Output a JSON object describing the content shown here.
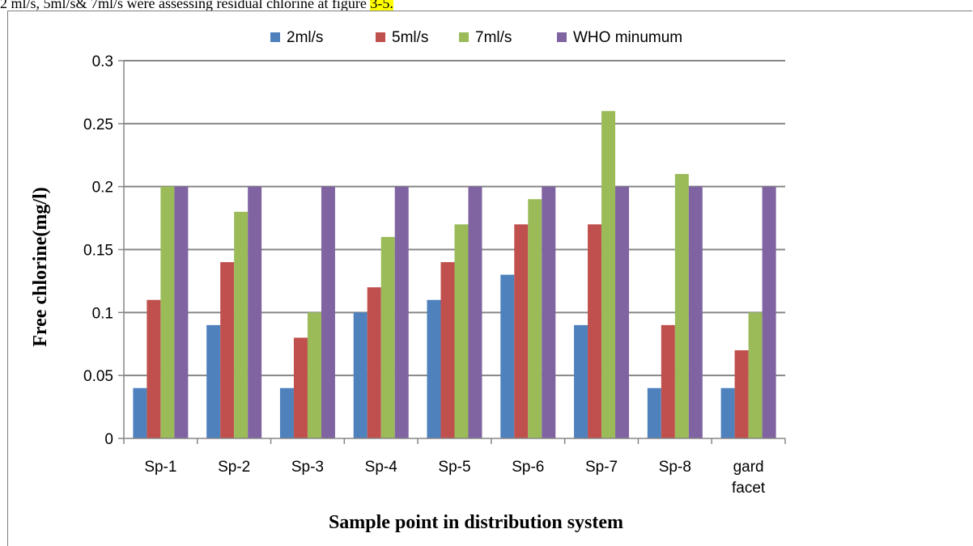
{
  "caption": {
    "text": "2 ml/s, 5ml/s& 7ml/s were assessing residual chlorine at figure ",
    "highlight": "3-5."
  },
  "chart_data": {
    "type": "bar",
    "title": "",
    "xlabel": "Sample point in distribution system",
    "ylabel": "Free chlorine(mg/l)",
    "ylim": [
      0,
      0.3
    ],
    "yticks": [
      "0",
      "0.05",
      "0.1",
      "0.15",
      "0.2",
      "0.25",
      "0.3"
    ],
    "grid": true,
    "legend_position": "top",
    "categories": [
      "Sp-1",
      "Sp-2",
      "Sp-3",
      "Sp-4",
      "Sp-5",
      "Sp-6",
      "Sp-7",
      "Sp-8",
      "gard facet"
    ],
    "series": [
      {
        "name": "2ml/s",
        "color": "#4f81bd",
        "values": [
          0.04,
          0.09,
          0.04,
          0.1,
          0.11,
          0.13,
          0.09,
          0.04,
          0.04
        ]
      },
      {
        "name": "5ml/s",
        "color": "#c0504d",
        "values": [
          0.11,
          0.14,
          0.08,
          0.12,
          0.14,
          0.17,
          0.17,
          0.09,
          0.07
        ]
      },
      {
        "name": "7ml/s",
        "color": "#9bbb59",
        "values": [
          0.2,
          0.18,
          0.1,
          0.16,
          0.17,
          0.19,
          0.26,
          0.21,
          0.1
        ]
      },
      {
        "name": "WHO minumum",
        "color": "#8064a2",
        "values": [
          0.2,
          0.2,
          0.2,
          0.2,
          0.2,
          0.2,
          0.2,
          0.2,
          0.2
        ]
      }
    ]
  }
}
